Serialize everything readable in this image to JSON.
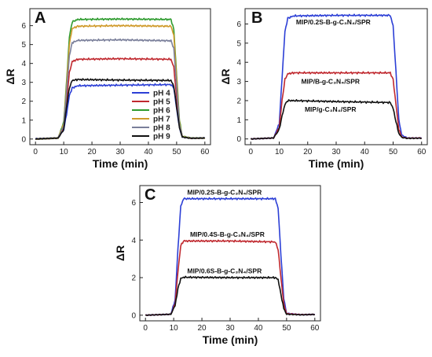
{
  "chart_data": [
    {
      "type": "line",
      "panel": "A",
      "xlabel": "Time (min)",
      "ylabel": "ΔR",
      "xlim": [
        -2,
        62
      ],
      "ylim": [
        -0.3,
        6.9
      ],
      "xticks": [
        0,
        10,
        20,
        30,
        40,
        50,
        60
      ],
      "yticks": [
        0,
        1,
        2,
        3,
        4,
        5,
        6
      ],
      "legend": "lower-right",
      "series": [
        {
          "name": "pH 4",
          "color": "#2c3fd6",
          "plateau": 2.85,
          "points": [
            [
              0,
              0.02
            ],
            [
              8,
              0.05
            ],
            [
              10,
              0.5
            ],
            [
              11,
              1.3
            ],
            [
              12,
              2.3
            ],
            [
              13,
              2.7
            ],
            [
              15,
              2.82
            ],
            [
              30,
              2.85
            ],
            [
              48,
              2.88
            ],
            [
              49,
              2.7
            ],
            [
              50,
              1.6
            ],
            [
              51,
              0.6
            ],
            [
              52,
              0.12
            ],
            [
              55,
              0.05
            ],
            [
              60,
              0.06
            ]
          ]
        },
        {
          "name": "pH 5",
          "color": "#c0292f",
          "plateau": 4.25,
          "points": [
            [
              0,
              0.0
            ],
            [
              8,
              0.05
            ],
            [
              10,
              0.6
            ],
            [
              11,
              2.0
            ],
            [
              12,
              3.5
            ],
            [
              13,
              4.1
            ],
            [
              15,
              4.22
            ],
            [
              30,
              4.25
            ],
            [
              48,
              4.22
            ],
            [
              49,
              3.8
            ],
            [
              50,
              2.2
            ],
            [
              51,
              0.8
            ],
            [
              52,
              0.15
            ],
            [
              55,
              0.05
            ],
            [
              60,
              0.05
            ]
          ]
        },
        {
          "name": "pH 6",
          "color": "#2e9b2e",
          "plateau": 6.35,
          "points": [
            [
              0,
              0.0
            ],
            [
              8,
              0.05
            ],
            [
              10,
              0.9
            ],
            [
              11,
              3.0
            ],
            [
              12,
              5.4
            ],
            [
              13,
              6.2
            ],
            [
              15,
              6.33
            ],
            [
              30,
              6.35
            ],
            [
              48,
              6.33
            ],
            [
              49,
              5.8
            ],
            [
              50,
              3.4
            ],
            [
              51,
              1.0
            ],
            [
              52,
              0.15
            ],
            [
              55,
              0.05
            ],
            [
              60,
              0.05
            ]
          ]
        },
        {
          "name": "pH 7",
          "color": "#cf9a2a",
          "plateau": 6.0,
          "points": [
            [
              0,
              0.0
            ],
            [
              8,
              0.05
            ],
            [
              10,
              0.8
            ],
            [
              11,
              2.8
            ],
            [
              12,
              5.0
            ],
            [
              13,
              5.85
            ],
            [
              15,
              5.97
            ],
            [
              30,
              6.0
            ],
            [
              48,
              5.97
            ],
            [
              49,
              5.5
            ],
            [
              50,
              3.2
            ],
            [
              51,
              0.9
            ],
            [
              52,
              0.12
            ],
            [
              55,
              0.04
            ],
            [
              60,
              0.05
            ]
          ]
        },
        {
          "name": "pH 8",
          "color": "#7a7f9a",
          "plateau": 5.25,
          "points": [
            [
              0,
              0.0
            ],
            [
              8,
              0.05
            ],
            [
              10,
              0.7
            ],
            [
              11,
              2.5
            ],
            [
              12,
              4.4
            ],
            [
              13,
              5.1
            ],
            [
              15,
              5.22
            ],
            [
              30,
              5.25
            ],
            [
              48,
              5.2
            ],
            [
              49,
              4.8
            ],
            [
              50,
              2.8
            ],
            [
              51,
              0.8
            ],
            [
              52,
              0.1
            ],
            [
              55,
              0.04
            ],
            [
              60,
              0.05
            ]
          ]
        },
        {
          "name": "pH 9",
          "color": "#111111",
          "plateau": 3.15,
          "points": [
            [
              0,
              0.0
            ],
            [
              8,
              0.05
            ],
            [
              10,
              0.5
            ],
            [
              11,
              1.7
            ],
            [
              12,
              2.7
            ],
            [
              13,
              3.1
            ],
            [
              15,
              3.15
            ],
            [
              30,
              3.12
            ],
            [
              48,
              3.1
            ],
            [
              49,
              2.8
            ],
            [
              50,
              1.7
            ],
            [
              51,
              0.6
            ],
            [
              52,
              0.1
            ],
            [
              55,
              0.04
            ],
            [
              60,
              0.05
            ]
          ]
        }
      ]
    },
    {
      "type": "line",
      "panel": "B",
      "xlabel": "Time (min)",
      "ylabel": "ΔR",
      "xlim": [
        -2,
        62
      ],
      "ylim": [
        -0.3,
        6.8
      ],
      "xticks": [
        0,
        10,
        20,
        30,
        40,
        50,
        60
      ],
      "yticks": [
        0,
        1,
        2,
        3,
        4,
        5,
        6
      ],
      "series": [
        {
          "label": "MIP/0.2S-B-g-C₃N₄/SPR",
          "color": "#2c3fd6",
          "plateau": 6.45,
          "label_x": 29,
          "label_y": 6.1,
          "points": [
            [
              0,
              0.0
            ],
            [
              8,
              0.05
            ],
            [
              10,
              0.8
            ],
            [
              11,
              3.2
            ],
            [
              12,
              5.6
            ],
            [
              13,
              6.3
            ],
            [
              15,
              6.42
            ],
            [
              30,
              6.45
            ],
            [
              49,
              6.45
            ],
            [
              50,
              5.9
            ],
            [
              51,
              3.5
            ],
            [
              52,
              1.0
            ],
            [
              53,
              0.2
            ],
            [
              55,
              0.05
            ],
            [
              60,
              0.05
            ]
          ]
        },
        {
          "label": "MIP/B-g-C₃N₄/SPR",
          "color": "#c0292f",
          "plateau": 3.45,
          "label_x": 28,
          "label_y": 3.0,
          "points": [
            [
              0,
              0.0
            ],
            [
              8,
              0.05
            ],
            [
              10,
              0.6
            ],
            [
              11,
              2.0
            ],
            [
              12,
              3.1
            ],
            [
              13,
              3.4
            ],
            [
              15,
              3.45
            ],
            [
              30,
              3.45
            ],
            [
              49,
              3.45
            ],
            [
              50,
              3.1
            ],
            [
              51,
              1.8
            ],
            [
              52,
              0.5
            ],
            [
              53,
              0.1
            ],
            [
              55,
              0.04
            ],
            [
              60,
              0.05
            ]
          ]
        },
        {
          "label": "MIP/g-C₃N₄/SPR",
          "color": "#111111",
          "plateau": 1.95,
          "label_x": 28,
          "label_y": 1.55,
          "points": [
            [
              0,
              0.0
            ],
            [
              8,
              0.05
            ],
            [
              10,
              0.5
            ],
            [
              11,
              1.2
            ],
            [
              12,
              1.8
            ],
            [
              13,
              2.0
            ],
            [
              15,
              2.0
            ],
            [
              30,
              1.95
            ],
            [
              49,
              1.9
            ],
            [
              50,
              1.6
            ],
            [
              51,
              0.9
            ],
            [
              52,
              0.3
            ],
            [
              53,
              0.08
            ],
            [
              55,
              0.03
            ],
            [
              60,
              0.04
            ]
          ]
        }
      ]
    },
    {
      "type": "line",
      "panel": "C",
      "xlabel": "Time (min)",
      "ylabel": "ΔR",
      "xlim": [
        -2,
        62
      ],
      "ylim": [
        -0.3,
        6.9
      ],
      "xticks": [
        0,
        10,
        20,
        30,
        40,
        50,
        60
      ],
      "yticks": [
        0,
        2,
        4,
        6
      ],
      "series": [
        {
          "label": "MIP/0.2S-B-g-C₃N₄/SPR",
          "color": "#2c3fd6",
          "plateau": 6.2,
          "label_x": 28,
          "label_y": 6.55,
          "points": [
            [
              0,
              0.0
            ],
            [
              9,
              0.05
            ],
            [
              10.5,
              0.8
            ],
            [
              11.5,
              3.5
            ],
            [
              12.5,
              5.8
            ],
            [
              13.5,
              6.2
            ],
            [
              30,
              6.2
            ],
            [
              46,
              6.2
            ],
            [
              47,
              5.7
            ],
            [
              48,
              3.2
            ],
            [
              49,
              0.9
            ],
            [
              50,
              0.1
            ],
            [
              55,
              0.03
            ],
            [
              60,
              0.04
            ]
          ]
        },
        {
          "label": "MIP/0.4S-B-g-C₃N₄/SPR",
          "color": "#c0292f",
          "plateau": 3.95,
          "label_x": 29,
          "label_y": 4.3,
          "points": [
            [
              0,
              0.0
            ],
            [
              9,
              0.05
            ],
            [
              10.5,
              0.6
            ],
            [
              11.5,
              2.3
            ],
            [
              12.5,
              3.7
            ],
            [
              13.5,
              3.95
            ],
            [
              30,
              3.95
            ],
            [
              46,
              3.9
            ],
            [
              47,
              3.5
            ],
            [
              48,
              2.0
            ],
            [
              49,
              0.6
            ],
            [
              50,
              0.08
            ],
            [
              55,
              0.03
            ],
            [
              60,
              0.04
            ]
          ]
        },
        {
          "label": "MIP/0.6S-B-g-C₃N₄/SPR",
          "color": "#111111",
          "plateau": 2.0,
          "label_x": 28,
          "label_y": 2.35,
          "points": [
            [
              0,
              0.0
            ],
            [
              9,
              0.05
            ],
            [
              10.5,
              0.5
            ],
            [
              11.5,
              1.4
            ],
            [
              12.5,
              1.95
            ],
            [
              13.5,
              2.02
            ],
            [
              30,
              2.0
            ],
            [
              46,
              2.0
            ],
            [
              47,
              1.9
            ],
            [
              48,
              1.1
            ],
            [
              49,
              0.35
            ],
            [
              50,
              0.05
            ],
            [
              55,
              0.02
            ],
            [
              60,
              0.04
            ]
          ]
        }
      ]
    }
  ]
}
